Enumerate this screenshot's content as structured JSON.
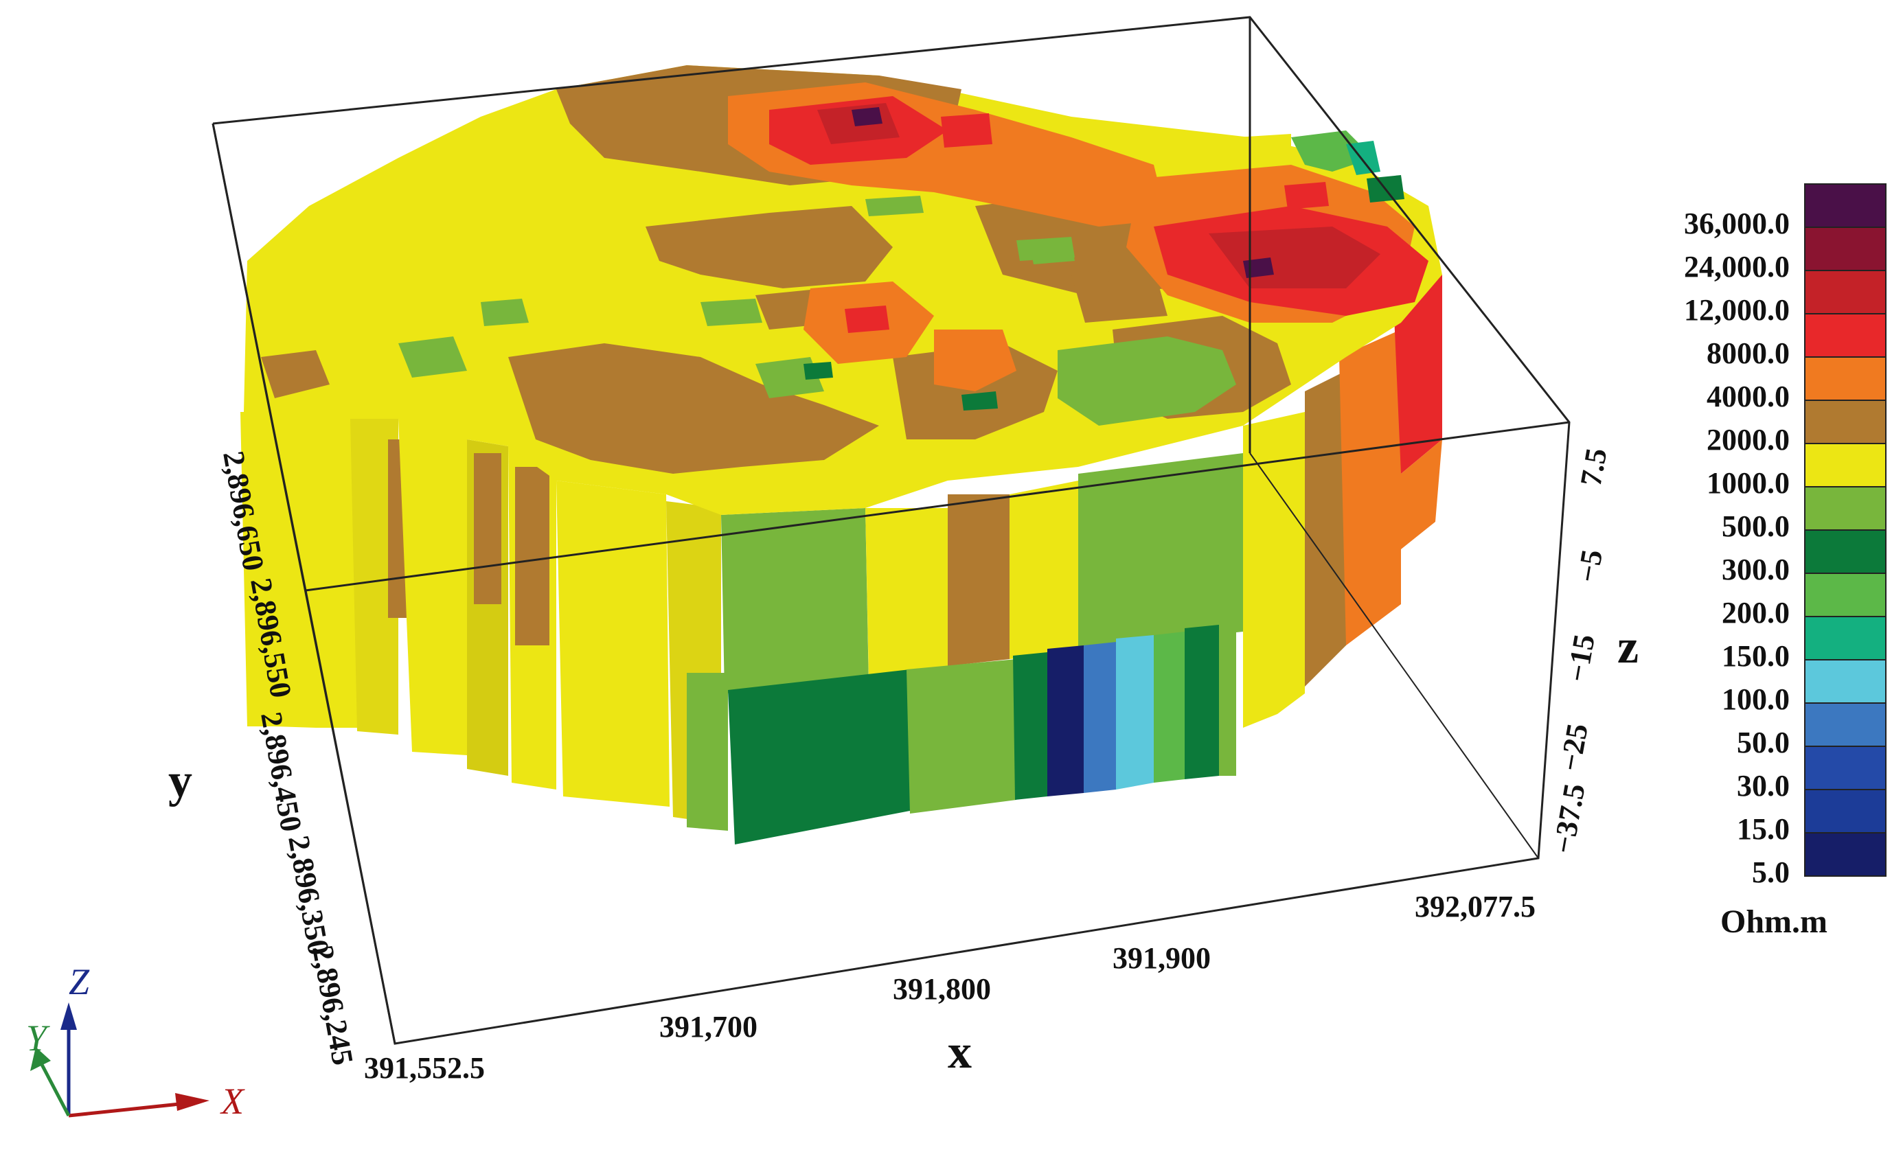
{
  "figure": {
    "axes": {
      "x": {
        "title": "x",
        "ticks": [
          "391,552.5",
          "391,700",
          "391,800",
          "391,900",
          "392,077.5"
        ]
      },
      "y": {
        "title": "y",
        "ticks": [
          "2,896,650",
          "2,896,550",
          "2,896,450",
          "2,896,350",
          "2,896,245"
        ]
      },
      "z": {
        "title": "z",
        "ticks": [
          "7.5",
          "−5",
          "−15",
          "−25",
          "−37.5"
        ]
      }
    },
    "legend": {
      "unit": "Ohm.m",
      "entries": [
        {
          "label": "36,000.0",
          "color": "#4a1048"
        },
        {
          "label": "24,000.0",
          "color": "#8a1430"
        },
        {
          "label": "12,000.0",
          "color": "#c42228"
        },
        {
          "label": "8000.0",
          "color": "#e8282a"
        },
        {
          "label": "4000.0",
          "color": "#f07a20"
        },
        {
          "label": "2000.0",
          "color": "#b07a30"
        },
        {
          "label": "1000.0",
          "color": "#ece614"
        },
        {
          "label": "500.0",
          "color": "#78b63c"
        },
        {
          "label": "300.0",
          "color": "#0c7a3a"
        },
        {
          "label": "200.0",
          "color": "#5cb848"
        },
        {
          "label": "150.0",
          "color": "#14b080"
        },
        {
          "label": "100.0",
          "color": "#5cc8dc"
        },
        {
          "label": "50.0",
          "color": "#3c78c0"
        },
        {
          "label": "30.0",
          "color": "#244aa8"
        },
        {
          "label": "15.0",
          "color": "#1c3c98"
        },
        {
          "label": "5.0",
          "color": "#161e68"
        }
      ]
    },
    "orientation_triad": {
      "labels": [
        "Z",
        "Y",
        "X"
      ]
    }
  }
}
